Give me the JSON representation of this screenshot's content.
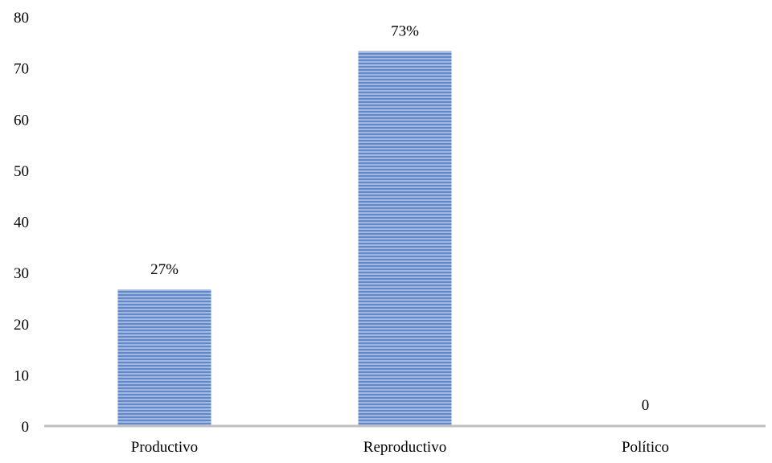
{
  "chart_data": {
    "type": "bar",
    "title": "",
    "xlabel": "",
    "ylabel": "",
    "categories": [
      "Productivo",
      "Reproductivo",
      "Político"
    ],
    "values": [
      26.7,
      73.3,
      0
    ],
    "data_labels": [
      "27%",
      "73%",
      "0"
    ],
    "ylim": [
      0,
      80
    ],
    "yticks": [
      "0",
      "10",
      "20",
      "30",
      "40",
      "50",
      "60",
      "70",
      "80"
    ],
    "grid": false,
    "legend": "none",
    "colors": {
      "bar_fill": "#9fb9e3",
      "bar_stripe": "#4f7cc0",
      "axis": "#bfbfbf"
    }
  }
}
